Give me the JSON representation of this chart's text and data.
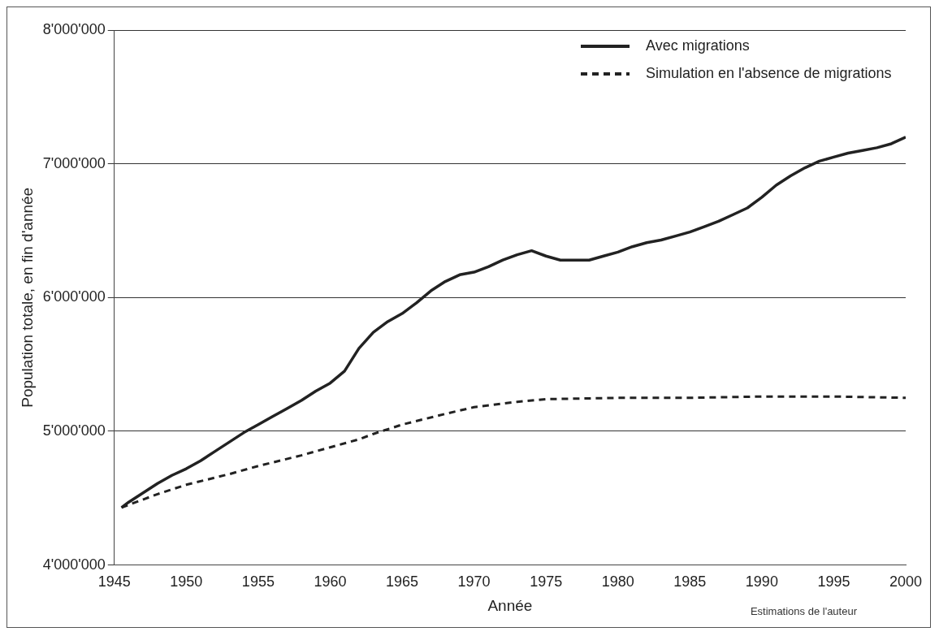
{
  "chart_data": {
    "type": "line",
    "xlabel": "Année",
    "ylabel": "Population totale, en fin d'année",
    "annotations": [
      "Estimations de l'auteur"
    ],
    "xlim": [
      1945,
      2000
    ],
    "xticks": [
      1945,
      1950,
      1955,
      1960,
      1965,
      1970,
      1975,
      1980,
      1985,
      1990,
      1995,
      2000
    ],
    "ylim": [
      4000000,
      8000000
    ],
    "yticks": [
      {
        "value": 4000000,
        "label": "4'000'000"
      },
      {
        "value": 5000000,
        "label": "5'000'000"
      },
      {
        "value": 6000000,
        "label": "6'000'000"
      },
      {
        "value": 7000000,
        "label": "7'000'000"
      },
      {
        "value": 8000000,
        "label": "8'000'000"
      }
    ],
    "grid": "y",
    "legend": "top right",
    "marker": "none",
    "series": [
      {
        "name": "Avec migrations",
        "color": "#222222",
        "line_style": "solid",
        "x": [
          1945.5,
          1946,
          1947,
          1948,
          1949,
          1950,
          1951,
          1952,
          1953,
          1954,
          1955,
          1956,
          1957,
          1958,
          1959,
          1960,
          1961,
          1962,
          1963,
          1964,
          1965,
          1966,
          1967,
          1968,
          1969,
          1970,
          1971,
          1972,
          1973,
          1974,
          1975,
          1976,
          1977,
          1978,
          1979,
          1980,
          1981,
          1982,
          1983,
          1984,
          1985,
          1986,
          1987,
          1988,
          1989,
          1990,
          1991,
          1992,
          1993,
          1994,
          1995,
          1996,
          1997,
          1998,
          1999,
          2000
        ],
        "values": [
          4430000,
          4470000,
          4540000,
          4610000,
          4670000,
          4720000,
          4780000,
          4850000,
          4920000,
          4990000,
          5050000,
          5110000,
          5170000,
          5230000,
          5300000,
          5360000,
          5450000,
          5620000,
          5740000,
          5820000,
          5880000,
          5960000,
          6050000,
          6120000,
          6170000,
          6190000,
          6230000,
          6280000,
          6320000,
          6350000,
          6310000,
          6280000,
          6280000,
          6280000,
          6310000,
          6340000,
          6380000,
          6410000,
          6430000,
          6460000,
          6490000,
          6530000,
          6570000,
          6620000,
          6670000,
          6750000,
          6840000,
          6910000,
          6970000,
          7020000,
          7050000,
          7080000,
          7100000,
          7120000,
          7150000,
          7200000
        ]
      },
      {
        "name": "Simulation en l'absence de migrations",
        "color": "#222222",
        "line_style": "dashed",
        "x": [
          1945.5,
          1948,
          1950,
          1953,
          1955,
          1958,
          1960,
          1962,
          1963,
          1965,
          1968,
          1970,
          1973,
          1975,
          1980,
          1985,
          1990,
          1995,
          2000
        ],
        "values": [
          4430000,
          4530000,
          4600000,
          4680000,
          4740000,
          4820000,
          4880000,
          4940000,
          4980000,
          5050000,
          5130000,
          5180000,
          5220000,
          5240000,
          5250000,
          5250000,
          5260000,
          5260000,
          5250000
        ]
      }
    ]
  }
}
